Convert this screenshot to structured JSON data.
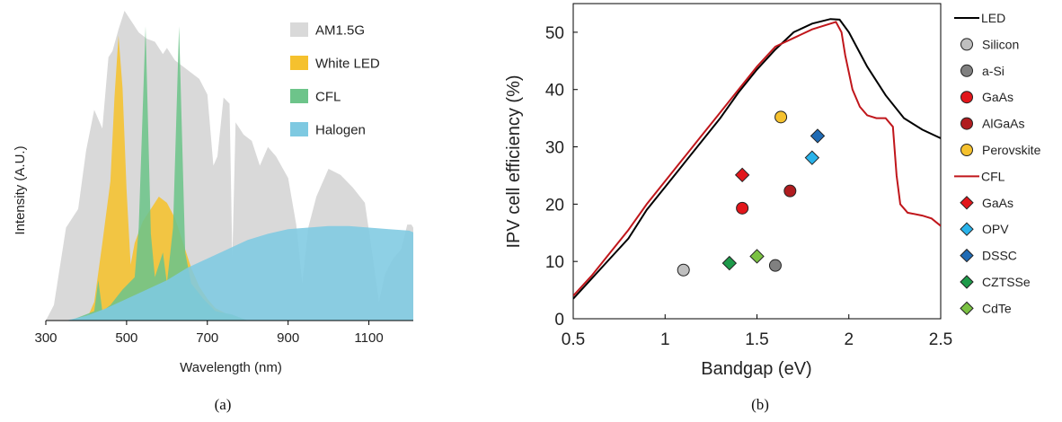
{
  "chart_data": [
    {
      "type": "area",
      "panel_label": "(a)",
      "xlabel": "Wavelength (nm)",
      "ylabel": "Intensity (A.U.)",
      "xlim": [
        300,
        1210
      ],
      "ylim": [
        0,
        1
      ],
      "x_ticks": [
        300,
        500,
        700,
        900,
        1100
      ],
      "x_tick_labels": [
        "300",
        "500",
        "700",
        "900",
        "1100"
      ],
      "legend": "top-right",
      "series": [
        {
          "name": "AM1.5G",
          "color": "#d9d9d9",
          "points": [
            [
              300,
              0
            ],
            [
              320,
              0.05
            ],
            [
              350,
              0.3
            ],
            [
              380,
              0.36
            ],
            [
              400,
              0.55
            ],
            [
              420,
              0.68
            ],
            [
              440,
              0.62
            ],
            [
              455,
              0.85
            ],
            [
              465,
              0.87
            ],
            [
              480,
              0.94
            ],
            [
              495,
              1.0
            ],
            [
              510,
              0.97
            ],
            [
              530,
              0.93
            ],
            [
              550,
              0.91
            ],
            [
              570,
              0.9
            ],
            [
              590,
              0.86
            ],
            [
              600,
              0.88
            ],
            [
              620,
              0.84
            ],
            [
              640,
              0.82
            ],
            [
              660,
              0.8
            ],
            [
              680,
              0.78
            ],
            [
              700,
              0.73
            ],
            [
              715,
              0.5
            ],
            [
              725,
              0.53
            ],
            [
              740,
              0.72
            ],
            [
              755,
              0.7
            ],
            [
              762,
              0.2
            ],
            [
              770,
              0.64
            ],
            [
              790,
              0.6
            ],
            [
              810,
              0.58
            ],
            [
              830,
              0.5
            ],
            [
              850,
              0.56
            ],
            [
              870,
              0.53
            ],
            [
              900,
              0.46
            ],
            [
              920,
              0.31
            ],
            [
              935,
              0.12
            ],
            [
              950,
              0.3
            ],
            [
              970,
              0.4
            ],
            [
              1000,
              0.49
            ],
            [
              1030,
              0.47
            ],
            [
              1060,
              0.43
            ],
            [
              1090,
              0.38
            ],
            [
              1110,
              0.2
            ],
            [
              1125,
              0.06
            ],
            [
              1140,
              0.15
            ],
            [
              1160,
              0.2
            ],
            [
              1180,
              0.23
            ],
            [
              1195,
              0.31
            ],
            [
              1205,
              0.31
            ],
            [
              1210,
              0.3
            ]
          ]
        },
        {
          "name": "White LED",
          "color": "#f5c12e",
          "points": [
            [
              300,
              0
            ],
            [
              400,
              0
            ],
            [
              420,
              0.06
            ],
            [
              440,
              0.25
            ],
            [
              460,
              0.45
            ],
            [
              470,
              0.72
            ],
            [
              480,
              0.92
            ],
            [
              490,
              0.75
            ],
            [
              500,
              0.42
            ],
            [
              510,
              0.18
            ],
            [
              520,
              0.25
            ],
            [
              540,
              0.32
            ],
            [
              560,
              0.36
            ],
            [
              580,
              0.4
            ],
            [
              600,
              0.38
            ],
            [
              620,
              0.33
            ],
            [
              640,
              0.25
            ],
            [
              660,
              0.17
            ],
            [
              680,
              0.11
            ],
            [
              700,
              0.07
            ],
            [
              720,
              0.04
            ],
            [
              750,
              0.02
            ],
            [
              800,
              0
            ],
            [
              1210,
              0
            ]
          ]
        },
        {
          "name": "CFL",
          "color": "#6dc48a",
          "points": [
            [
              300,
              0
            ],
            [
              360,
              0
            ],
            [
              400,
              0.02
            ],
            [
              420,
              0.03
            ],
            [
              430,
              0.13
            ],
            [
              440,
              0.03
            ],
            [
              460,
              0.05
            ],
            [
              490,
              0.1
            ],
            [
              520,
              0.14
            ],
            [
              530,
              0.3
            ],
            [
              547,
              0.95
            ],
            [
              560,
              0.28
            ],
            [
              570,
              0.14
            ],
            [
              590,
              0.22
            ],
            [
              600,
              0.12
            ],
            [
              615,
              0.3
            ],
            [
              630,
              0.95
            ],
            [
              645,
              0.22
            ],
            [
              660,
              0.12
            ],
            [
              690,
              0.07
            ],
            [
              720,
              0.03
            ],
            [
              760,
              0.02
            ],
            [
              800,
              0
            ],
            [
              1210,
              0
            ]
          ]
        },
        {
          "name": "Halogen",
          "color": "#7ec9e1",
          "points": [
            [
              300,
              0
            ],
            [
              350,
              0
            ],
            [
              400,
              0.015
            ],
            [
              450,
              0.04
            ],
            [
              500,
              0.07
            ],
            [
              550,
              0.1
            ],
            [
              600,
              0.13
            ],
            [
              650,
              0.17
            ],
            [
              700,
              0.2
            ],
            [
              750,
              0.23
            ],
            [
              800,
              0.26
            ],
            [
              850,
              0.28
            ],
            [
              900,
              0.295
            ],
            [
              950,
              0.3
            ],
            [
              1000,
              0.305
            ],
            [
              1050,
              0.305
            ],
            [
              1100,
              0.3
            ],
            [
              1150,
              0.295
            ],
            [
              1200,
              0.29
            ],
            [
              1210,
              0.285
            ]
          ]
        }
      ]
    },
    {
      "type": "line",
      "panel_label": "(b)",
      "xlabel": "Bandgap (eV)",
      "ylabel": "IPV cell efficiency (%)",
      "xlim": [
        0.5,
        2.5
      ],
      "ylim": [
        0,
        55
      ],
      "x_ticks": [
        0.5,
        1,
        1.5,
        2,
        2.5
      ],
      "x_tick_labels": [
        "0.5",
        "1",
        "1.5",
        "2",
        "2.5"
      ],
      "y_ticks": [
        0,
        10,
        20,
        30,
        40,
        50
      ],
      "y_tick_labels": [
        "0",
        "10",
        "20",
        "30",
        "40",
        "50"
      ],
      "legend": "right",
      "lines": [
        {
          "name": "LED",
          "color": "#000000",
          "points": [
            [
              0.5,
              3.5
            ],
            [
              0.6,
              7
            ],
            [
              0.7,
              10.5
            ],
            [
              0.8,
              14
            ],
            [
              0.9,
              19
            ],
            [
              1.0,
              23
            ],
            [
              1.1,
              27
            ],
            [
              1.2,
              31
            ],
            [
              1.3,
              35
            ],
            [
              1.4,
              39.5
            ],
            [
              1.5,
              43.5
            ],
            [
              1.6,
              47
            ],
            [
              1.7,
              50
            ],
            [
              1.8,
              51.5
            ],
            [
              1.9,
              52.3
            ],
            [
              1.95,
              52.2
            ],
            [
              2.0,
              50
            ],
            [
              2.05,
              47
            ],
            [
              2.1,
              44
            ],
            [
              2.2,
              39
            ],
            [
              2.3,
              35
            ],
            [
              2.4,
              33
            ],
            [
              2.5,
              31.5
            ]
          ]
        },
        {
          "name": "CFL",
          "color": "#c0161b",
          "points": [
            [
              0.5,
              4
            ],
            [
              0.6,
              7.5
            ],
            [
              0.7,
              11.5
            ],
            [
              0.8,
              15.5
            ],
            [
              0.9,
              20
            ],
            [
              1.0,
              24
            ],
            [
              1.1,
              28
            ],
            [
              1.2,
              32
            ],
            [
              1.3,
              36
            ],
            [
              1.4,
              40
            ],
            [
              1.5,
              44
            ],
            [
              1.6,
              47.5
            ],
            [
              1.7,
              49
            ],
            [
              1.8,
              50.5
            ],
            [
              1.9,
              51.5
            ],
            [
              1.93,
              51.8
            ],
            [
              1.96,
              50
            ],
            [
              1.98,
              46
            ],
            [
              2.02,
              40
            ],
            [
              2.06,
              37
            ],
            [
              2.1,
              35.5
            ],
            [
              2.15,
              35
            ],
            [
              2.2,
              35
            ],
            [
              2.24,
              33.5
            ],
            [
              2.26,
              25
            ],
            [
              2.28,
              20
            ],
            [
              2.32,
              18.5
            ],
            [
              2.4,
              18
            ],
            [
              2.45,
              17.5
            ],
            [
              2.5,
              16.2
            ]
          ]
        }
      ],
      "circle_group_label": "LED",
      "diamond_group_label": "CFL",
      "circles": [
        {
          "name": "Silicon",
          "color": "#bfbfbf",
          "x": 1.1,
          "y": 8.5
        },
        {
          "name": "a-Si",
          "color": "#808080",
          "x": 1.6,
          "y": 9.3
        },
        {
          "name": "GaAs",
          "color": "#e2161b",
          "x": 1.42,
          "y": 19.3
        },
        {
          "name": "AlGaAs",
          "color": "#b01c1f",
          "x": 1.68,
          "y": 22.3
        },
        {
          "name": "Perovskite",
          "color": "#f5c12e",
          "x": 1.63,
          "y": 35.2
        }
      ],
      "diamonds": [
        {
          "name": "GaAs",
          "color": "#e2161b",
          "x": 1.42,
          "y": 25.1
        },
        {
          "name": "OPV",
          "color": "#29b3ea",
          "x": 1.8,
          "y": 28.1
        },
        {
          "name": "DSSC",
          "color": "#1f6bb5",
          "x": 1.83,
          "y": 31.9
        },
        {
          "name": "CZTSSe",
          "color": "#1e9a4a",
          "x": 1.35,
          "y": 9.7
        },
        {
          "name": "CdTe",
          "color": "#7ac142",
          "x": 1.5,
          "y": 10.9
        }
      ]
    }
  ]
}
